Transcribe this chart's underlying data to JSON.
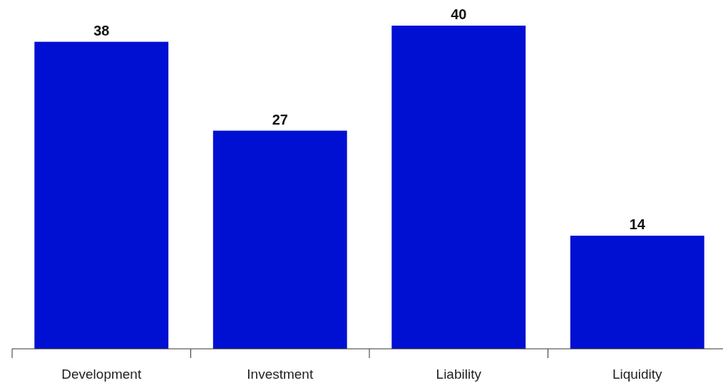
{
  "chart_data": {
    "type": "bar",
    "categories": [
      "Development",
      "Investment",
      "Liability",
      "Liquidity"
    ],
    "values": [
      38,
      27,
      40,
      14
    ],
    "color": "#0010d2",
    "data_labels": true
  }
}
